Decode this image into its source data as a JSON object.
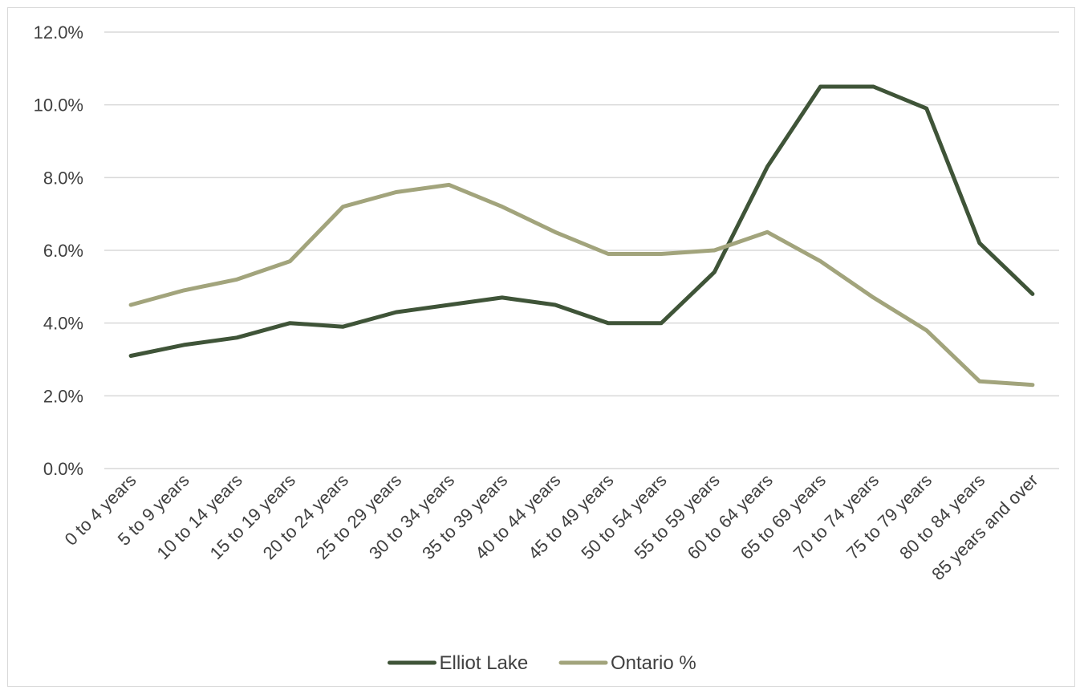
{
  "chart_data": {
    "type": "line",
    "categories": [
      "0 to 4 years",
      "5 to 9 years",
      "10 to 14 years",
      "15 to 19 years",
      "20 to 24 years",
      "25 to 29 years",
      "30 to 34 years",
      "35 to 39 years",
      "40 to 44 years",
      "45 to 49 years",
      "50 to 54 years",
      "55 to 59 years",
      "60 to 64 years",
      "65 to 69 years",
      "70 to 74 years",
      "75 to 79 years",
      "80 to 84 years",
      "85 years and over"
    ],
    "series": [
      {
        "name": "Elliot Lake",
        "color": "#3f5438",
        "values": [
          3.1,
          3.4,
          3.6,
          4.0,
          3.9,
          4.3,
          4.5,
          4.7,
          4.5,
          4.0,
          4.0,
          5.4,
          8.3,
          10.5,
          10.5,
          9.9,
          6.2,
          4.8
        ]
      },
      {
        "name": "Ontario %",
        "color": "#a2a47c",
        "values": [
          4.5,
          4.9,
          5.2,
          5.7,
          7.2,
          7.6,
          7.8,
          7.2,
          6.5,
          5.9,
          5.9,
          6.0,
          6.5,
          5.7,
          4.7,
          3.8,
          2.4,
          2.3
        ]
      }
    ],
    "yticks": [
      "0.0%",
      "2.0%",
      "4.0%",
      "6.0%",
      "8.0%",
      "10.0%",
      "12.0%"
    ],
    "ylim": [
      0,
      12
    ],
    "grid": true,
    "legend": "bottom",
    "title": "",
    "xlabel": "",
    "ylabel": ""
  }
}
